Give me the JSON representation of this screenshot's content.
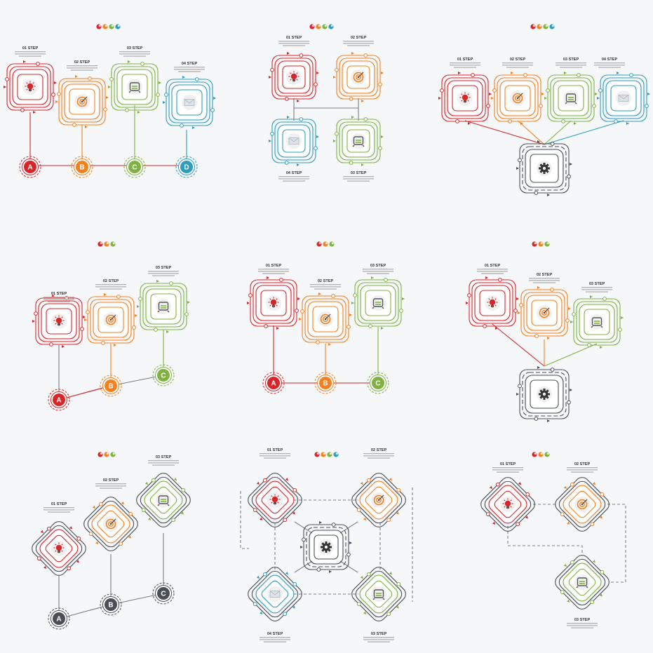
{
  "colors": {
    "red": "#d7262a",
    "orange": "#f3811f",
    "green": "#7fb241",
    "blue": "#2e9dbd",
    "dark": "#4a4f57",
    "line": "#7a7f86"
  },
  "icons": [
    "lightbulb-icon",
    "target-icon",
    "clock-icon",
    "envelope-icon",
    "gear-icon"
  ],
  "step_labels": {
    "s01": "01 STEP",
    "s02": "02 STEP",
    "s03": "03 STEP",
    "s04": "04 STEP"
  },
  "letters": {
    "a": "A",
    "b": "B",
    "c": "C",
    "d": "D"
  }
}
